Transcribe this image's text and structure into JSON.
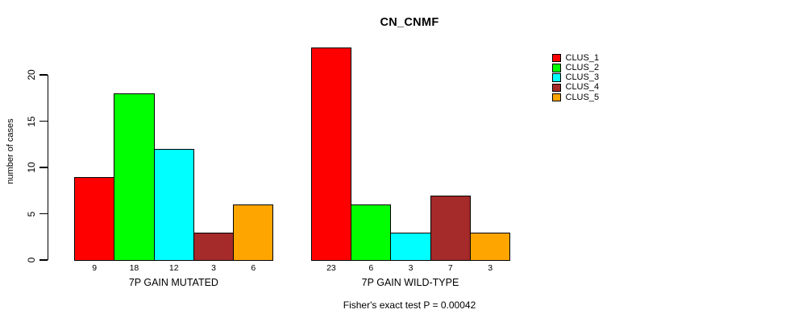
{
  "chart_data": {
    "type": "bar",
    "title": "CN_CNMF",
    "ylabel": "number of cases",
    "ylim": [
      0,
      20
    ],
    "yticks": [
      0,
      5,
      10,
      15,
      20
    ],
    "groups": [
      {
        "key": "mutated",
        "label": "7P GAIN MUTATED",
        "values": [
          9,
          18,
          12,
          3,
          6
        ]
      },
      {
        "key": "wild-type",
        "label": "7P GAIN WILD-TYPE",
        "values": [
          23,
          6,
          3,
          7,
          3
        ]
      }
    ],
    "series_names": [
      "CLUS_1",
      "CLUS_2",
      "CLUS_3",
      "CLUS_4",
      "CLUS_5"
    ],
    "colors": [
      "#FF0000",
      "#00FF00",
      "#00FFFF",
      "#A52A2A",
      "#FFA500"
    ],
    "bar_value_labels": true,
    "annotation": "Fisher's exact test P = 0.00042",
    "legend_position": "right",
    "grid": false,
    "background": "#FFFFFF",
    "axis_color": "#000000"
  }
}
